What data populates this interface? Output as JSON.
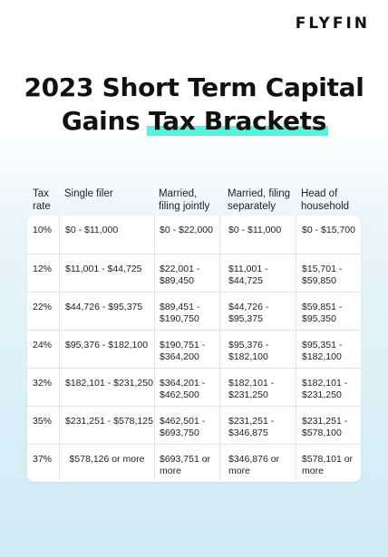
{
  "brand": {
    "logo": "FLYFIN"
  },
  "title": {
    "line1": "2023 Short Term Capital",
    "line2_prefix": "Gains ",
    "line2_highlight": "Tax Brackets"
  },
  "colors": {
    "highlight": "#5ef0dc",
    "background_bottom": "#cfeaf5"
  },
  "table": {
    "headers": [
      "Tax rate",
      "Single filer",
      "Married, filing jointly",
      "Married, filing separately",
      "Head of household"
    ],
    "rows": [
      [
        "10%",
        "$0 - $11,000",
        "$0 - $22,000",
        "$0 - $11,000",
        "$0 - $15,700"
      ],
      [
        "12%",
        "$11,001 - $44,725",
        "$22,001 - $89,450",
        "$11,001 - $44,725",
        "$15,701 - $59,850"
      ],
      [
        "22%",
        "$44,726 - $95,375",
        "$89,451 - $190,750",
        "$44,726 - $95,375",
        "$59,851 - $95,350"
      ],
      [
        "24%",
        "$95,376 - $182,100",
        "$190,751 - $364,200",
        "$95,376 - $182,100",
        "$95,351 - $182,100"
      ],
      [
        "32%",
        "$182,101 - $231,250",
        "$364,201 - $462,500",
        "$182,101 - $231,250",
        "$182,101 - $231,250"
      ],
      [
        "35%",
        "$231,251 - $578,125",
        "$462,501 - $693,750",
        "$231,251 - $346,875",
        "$231,251 - $578,100"
      ],
      [
        "37%",
        "$578,126 or more",
        "$693,751 or more",
        "$346,876 or more",
        "$578,101 or more"
      ]
    ]
  }
}
